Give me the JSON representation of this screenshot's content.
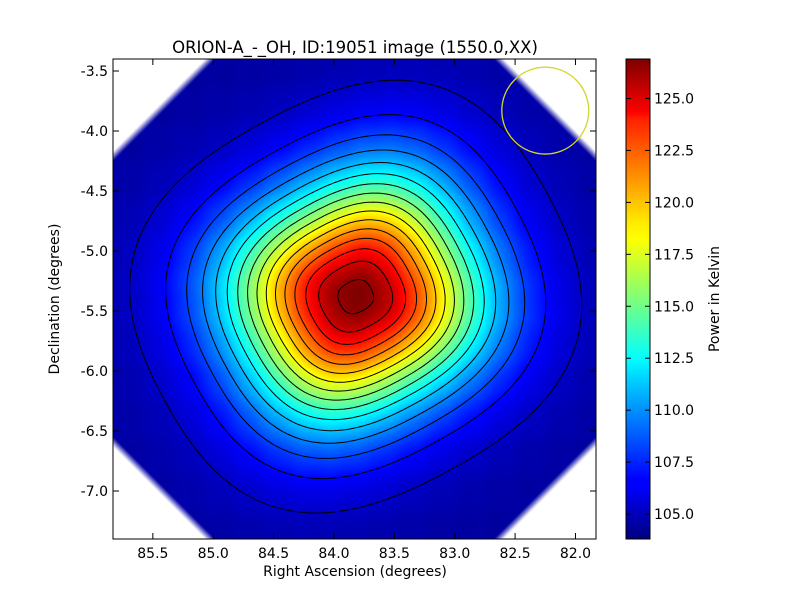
{
  "chart_data": {
    "type": "heatmap",
    "title": "ORION-A_-_OH, ID:19051 image (1550.0,XX)",
    "xlabel": "Right Ascension (degrees)",
    "ylabel": "Declination (degrees)",
    "colorbar_label": "Power in Kelvin",
    "colormap": "jet",
    "xlim": [
      85.83,
      81.83
    ],
    "ylim": [
      -7.4,
      -3.4
    ],
    "x_axis_inverted": true,
    "x_ticks": [
      "85.5",
      "85.0",
      "84.5",
      "84.0",
      "83.5",
      "83.0",
      "82.5",
      "82.0"
    ],
    "y_ticks": [
      "-3.5",
      "-4.0",
      "-4.5",
      "-5.0",
      "-5.5",
      "-6.0",
      "-6.5",
      "-7.0"
    ],
    "colorbar_ticks": [
      "105.0",
      "107.5",
      "110.0",
      "112.5",
      "115.0",
      "117.5",
      "120.0",
      "122.5",
      "125.0"
    ],
    "colorbar_range": [
      103.8,
      126.9
    ],
    "background_value": 104.5,
    "peak": {
      "ra": 83.82,
      "dec": -5.38,
      "value": 126.9
    },
    "contour_count": 16,
    "beam_circle": {
      "ra": 82.25,
      "dec": -3.83,
      "radius_deg": 0.36,
      "color": "#d4d42a"
    },
    "grid": false,
    "colors": {
      "beam": "#d4d42a",
      "contour": "#000000",
      "frame": "#000000"
    }
  }
}
